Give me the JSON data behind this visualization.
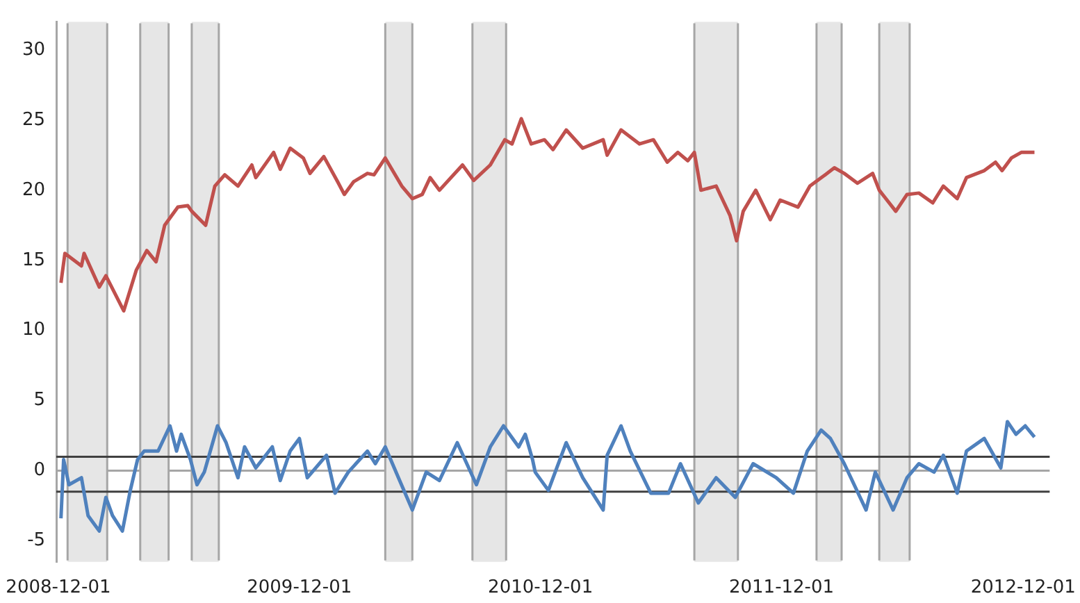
{
  "chart_data": {
    "type": "line",
    "ylim": [
      -6.5,
      32
    ],
    "yticks": [
      -5,
      0,
      5,
      10,
      15,
      20,
      25,
      30
    ],
    "xlim": [
      "2008-11-28",
      "2013-01-10"
    ],
    "xticks": [
      "2008-12-01",
      "2009-12-01",
      "2010-12-01",
      "2011-12-01",
      "2012-12-01"
    ],
    "marker": "none",
    "legend": false,
    "series": [
      {
        "color": "#c0504d",
        "x": [
          "2008-12-05",
          "2008-12-11",
          "2009-01-05",
          "2009-01-09",
          "2009-02-01",
          "2009-02-11",
          "2009-03-10",
          "2009-03-29",
          "2009-04-14",
          "2009-04-28",
          "2009-05-11",
          "2009-05-31",
          "2009-06-15",
          "2009-06-21",
          "2009-07-12",
          "2009-07-26",
          "2009-08-10",
          "2009-08-30",
          "2009-09-20",
          "2009-09-26",
          "2009-10-23",
          "2009-11-02",
          "2009-11-17",
          "2009-12-07",
          "2009-12-17",
          "2010-01-07",
          "2010-01-28",
          "2010-02-07",
          "2010-02-21",
          "2010-03-14",
          "2010-03-24",
          "2010-04-10",
          "2010-05-05",
          "2010-05-21",
          "2010-06-05",
          "2010-06-17",
          "2010-07-01",
          "2010-08-05",
          "2010-08-22",
          "2010-09-16",
          "2010-10-08",
          "2010-10-19",
          "2010-11-02",
          "2010-11-17",
          "2010-12-07",
          "2010-12-20",
          "2011-01-09",
          "2011-02-03",
          "2011-03-06",
          "2011-03-12",
          "2011-04-02",
          "2011-04-30",
          "2011-05-21",
          "2011-06-11",
          "2011-06-27",
          "2011-07-12",
          "2011-07-22",
          "2011-08-01",
          "2011-08-24",
          "2011-09-14",
          "2011-09-24",
          "2011-10-04",
          "2011-10-23",
          "2011-11-14",
          "2011-11-29",
          "2011-12-26",
          "2012-01-13",
          "2012-02-05",
          "2012-02-19",
          "2012-03-05",
          "2012-03-25",
          "2012-04-17",
          "2012-04-27",
          "2012-05-22",
          "2012-06-08",
          "2012-06-26",
          "2012-07-17",
          "2012-08-02",
          "2012-08-23",
          "2012-09-06",
          "2012-10-03",
          "2012-10-20",
          "2012-10-30",
          "2012-11-13",
          "2012-11-28",
          "2012-12-18"
        ],
        "values": [
          13.4,
          15.5,
          14.6,
          15.5,
          13.1,
          13.9,
          11.4,
          14.3,
          15.7,
          14.9,
          17.5,
          18.8,
          18.9,
          18.5,
          17.5,
          20.3,
          21.1,
          20.3,
          21.8,
          20.9,
          22.7,
          21.5,
          23.0,
          22.3,
          21.2,
          22.4,
          20.6,
          19.7,
          20.6,
          21.2,
          21.1,
          22.3,
          20.3,
          19.4,
          19.7,
          20.9,
          20.0,
          21.8,
          20.7,
          21.8,
          23.6,
          23.3,
          25.1,
          23.3,
          23.6,
          22.9,
          24.3,
          23.0,
          23.6,
          22.5,
          24.3,
          23.3,
          23.6,
          22.0,
          22.7,
          22.1,
          22.7,
          20.0,
          20.3,
          18.2,
          16.4,
          18.5,
          20.0,
          17.9,
          19.3,
          18.8,
          20.3,
          21.1,
          21.6,
          21.2,
          20.5,
          21.2,
          20.0,
          18.5,
          19.7,
          19.8,
          19.1,
          20.3,
          19.4,
          20.9,
          21.4,
          22.0,
          21.4,
          22.3,
          22.7,
          22.7
        ]
      },
      {
        "color": "#4f81bd",
        "x": [
          "2008-12-05",
          "2008-12-09",
          "2008-12-17",
          "2009-01-05",
          "2009-01-15",
          "2009-02-01",
          "2009-02-11",
          "2009-02-21",
          "2009-03-08",
          "2009-03-20",
          "2009-03-31",
          "2009-04-10",
          "2009-05-01",
          "2009-05-19",
          "2009-05-29",
          "2009-06-05",
          "2009-06-19",
          "2009-06-29",
          "2009-07-10",
          "2009-07-30",
          "2009-08-12",
          "2009-08-30",
          "2009-09-09",
          "2009-09-26",
          "2009-10-21",
          "2009-11-02",
          "2009-11-17",
          "2009-12-01",
          "2009-12-13",
          "2010-01-11",
          "2010-01-24",
          "2010-02-13",
          "2010-03-14",
          "2010-03-26",
          "2010-04-10",
          "2010-04-30",
          "2010-05-21",
          "2010-06-11",
          "2010-07-01",
          "2010-07-28",
          "2010-08-26",
          "2010-09-16",
          "2010-10-06",
          "2010-10-29",
          "2010-11-08",
          "2010-11-19",
          "2010-11-23",
          "2010-12-13",
          "2011-01-09",
          "2011-02-03",
          "2011-03-06",
          "2011-03-12",
          "2011-04-02",
          "2011-04-16",
          "2011-05-17",
          "2011-06-13",
          "2011-07-01",
          "2011-07-28",
          "2011-08-24",
          "2011-09-22",
          "2011-10-19",
          "2011-11-23",
          "2011-12-19",
          "2012-01-09",
          "2012-01-30",
          "2012-02-13",
          "2012-03-05",
          "2012-04-07",
          "2012-04-21",
          "2012-05-18",
          "2012-06-08",
          "2012-06-26",
          "2012-07-19",
          "2012-08-02",
          "2012-08-23",
          "2012-09-06",
          "2012-10-03",
          "2012-10-28",
          "2012-11-07",
          "2012-11-20",
          "2012-12-04",
          "2012-12-18"
        ],
        "values": [
          -3.4,
          0.8,
          -1.0,
          -0.5,
          -3.2,
          -4.3,
          -1.9,
          -3.2,
          -4.3,
          -1.4,
          0.8,
          1.4,
          1.4,
          3.2,
          1.4,
          2.6,
          0.8,
          -1.0,
          -0.1,
          3.2,
          2.0,
          -0.5,
          1.7,
          0.2,
          1.7,
          -0.7,
          1.4,
          2.3,
          -0.5,
          1.1,
          -1.6,
          -0.1,
          1.4,
          0.5,
          1.7,
          -0.5,
          -2.8,
          -0.1,
          -0.7,
          2.0,
          -1.0,
          1.7,
          3.2,
          1.7,
          2.6,
          0.8,
          -0.1,
          -1.4,
          2.0,
          -0.5,
          -2.8,
          1.1,
          3.2,
          1.4,
          -1.6,
          -1.6,
          0.5,
          -2.3,
          -0.5,
          -1.9,
          0.5,
          -0.5,
          -1.6,
          1.4,
          2.9,
          2.3,
          0.5,
          -2.8,
          -0.1,
          -2.8,
          -0.5,
          0.5,
          -0.1,
          1.1,
          -1.6,
          1.4,
          2.3,
          0.2,
          3.5,
          2.6,
          3.2,
          2.4
        ]
      }
    ],
    "ref_lines": [
      {
        "axis": "y",
        "value": 1,
        "color": "#404040"
      },
      {
        "axis": "y",
        "value": -1.5,
        "color": "#404040"
      }
    ],
    "bands": [
      {
        "axis": "x",
        "from": "2008-12-15",
        "to": "2009-02-13",
        "color": "#e6e6e6"
      },
      {
        "axis": "x",
        "from": "2009-04-04",
        "to": "2009-05-17",
        "color": "#e6e6e6"
      },
      {
        "axis": "x",
        "from": "2009-06-21",
        "to": "2009-08-01",
        "color": "#e6e6e6"
      },
      {
        "axis": "x",
        "from": "2010-04-10",
        "to": "2010-05-21",
        "color": "#e6e6e6"
      },
      {
        "axis": "x",
        "from": "2010-08-20",
        "to": "2010-10-10",
        "color": "#e6e6e6"
      },
      {
        "axis": "x",
        "from": "2011-07-22",
        "to": "2011-09-26",
        "color": "#e6e6e6"
      },
      {
        "axis": "x",
        "from": "2012-01-23",
        "to": "2012-03-01",
        "color": "#e6e6e6"
      },
      {
        "axis": "x",
        "from": "2012-04-27",
        "to": "2012-06-12",
        "color": "#e6e6e6"
      }
    ]
  }
}
